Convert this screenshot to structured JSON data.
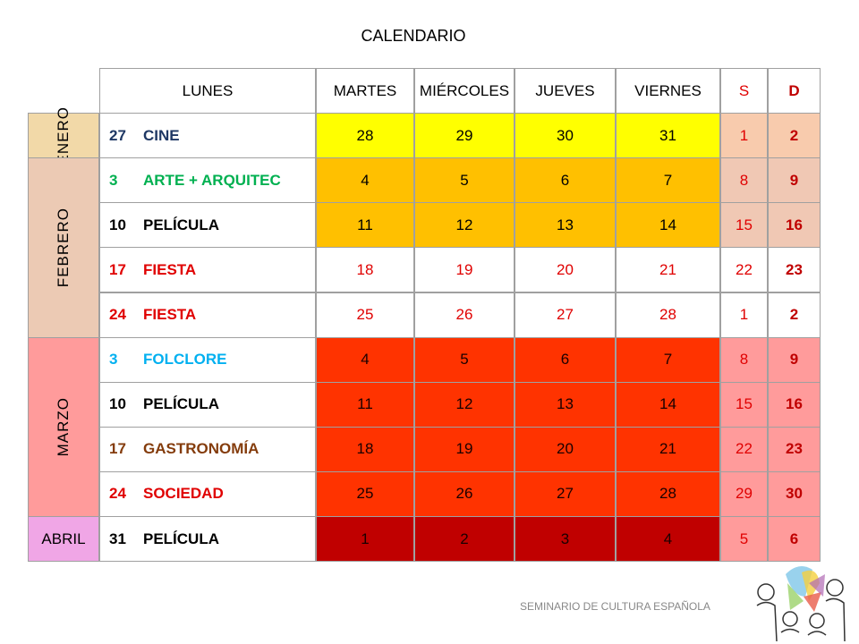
{
  "header": {
    "title": "CALENDARIO"
  },
  "table": {
    "columns": [
      "LUNES",
      "MARTES",
      "MIÉRCOLES",
      "JUEVES",
      "VIERNES",
      "S",
      "D"
    ],
    "months": [
      {
        "label": "ENERO",
        "rows": [
          {
            "day": "27",
            "activity": "CINE",
            "cells": [
              "28",
              "29",
              "30",
              "31",
              "1",
              "2"
            ]
          }
        ]
      },
      {
        "label": "FEBRERO",
        "rows": [
          {
            "day": "3",
            "activity": "ARTE + ARQUITEC",
            "cells": [
              "4",
              "5",
              "6",
              "7",
              "8",
              "9"
            ]
          },
          {
            "day": "10",
            "activity": "PELÍCULA",
            "cells": [
              "11",
              "12",
              "13",
              "14",
              "15",
              "16"
            ]
          },
          {
            "day": "17",
            "activity": "FIESTA",
            "cells": [
              "18",
              "19",
              "20",
              "21",
              "22",
              "23"
            ]
          },
          {
            "day": "24",
            "activity": "FIESTA",
            "cells": [
              "25",
              "26",
              "27",
              "28",
              "1",
              "2"
            ]
          }
        ]
      },
      {
        "label": "MARZO",
        "rows": [
          {
            "day": "3",
            "activity": "FOLCLORE",
            "cells": [
              "4",
              "5",
              "6",
              "7",
              "8",
              "9"
            ]
          },
          {
            "day": "10",
            "activity": "PELÍCULA",
            "cells": [
              "11",
              "12",
              "13",
              "14",
              "15",
              "16"
            ]
          },
          {
            "day": "17",
            "activity": "GASTRONOMÍA",
            "cells": [
              "18",
              "19",
              "20",
              "21",
              "22",
              "23"
            ]
          },
          {
            "day": "24",
            "activity": "SOCIEDAD",
            "cells": [
              "25",
              "26",
              "27",
              "28",
              "29",
              "30"
            ]
          }
        ]
      },
      {
        "label": "ABRIL",
        "rows": [
          {
            "day": "31",
            "activity": "PELÍCULA",
            "cells": [
              "1",
              "2",
              "3",
              "4",
              "5",
              "6"
            ]
          }
        ]
      }
    ]
  },
  "footer": {
    "text": "SEMINARIO DE CULTURA ESPAÑOLA"
  }
}
